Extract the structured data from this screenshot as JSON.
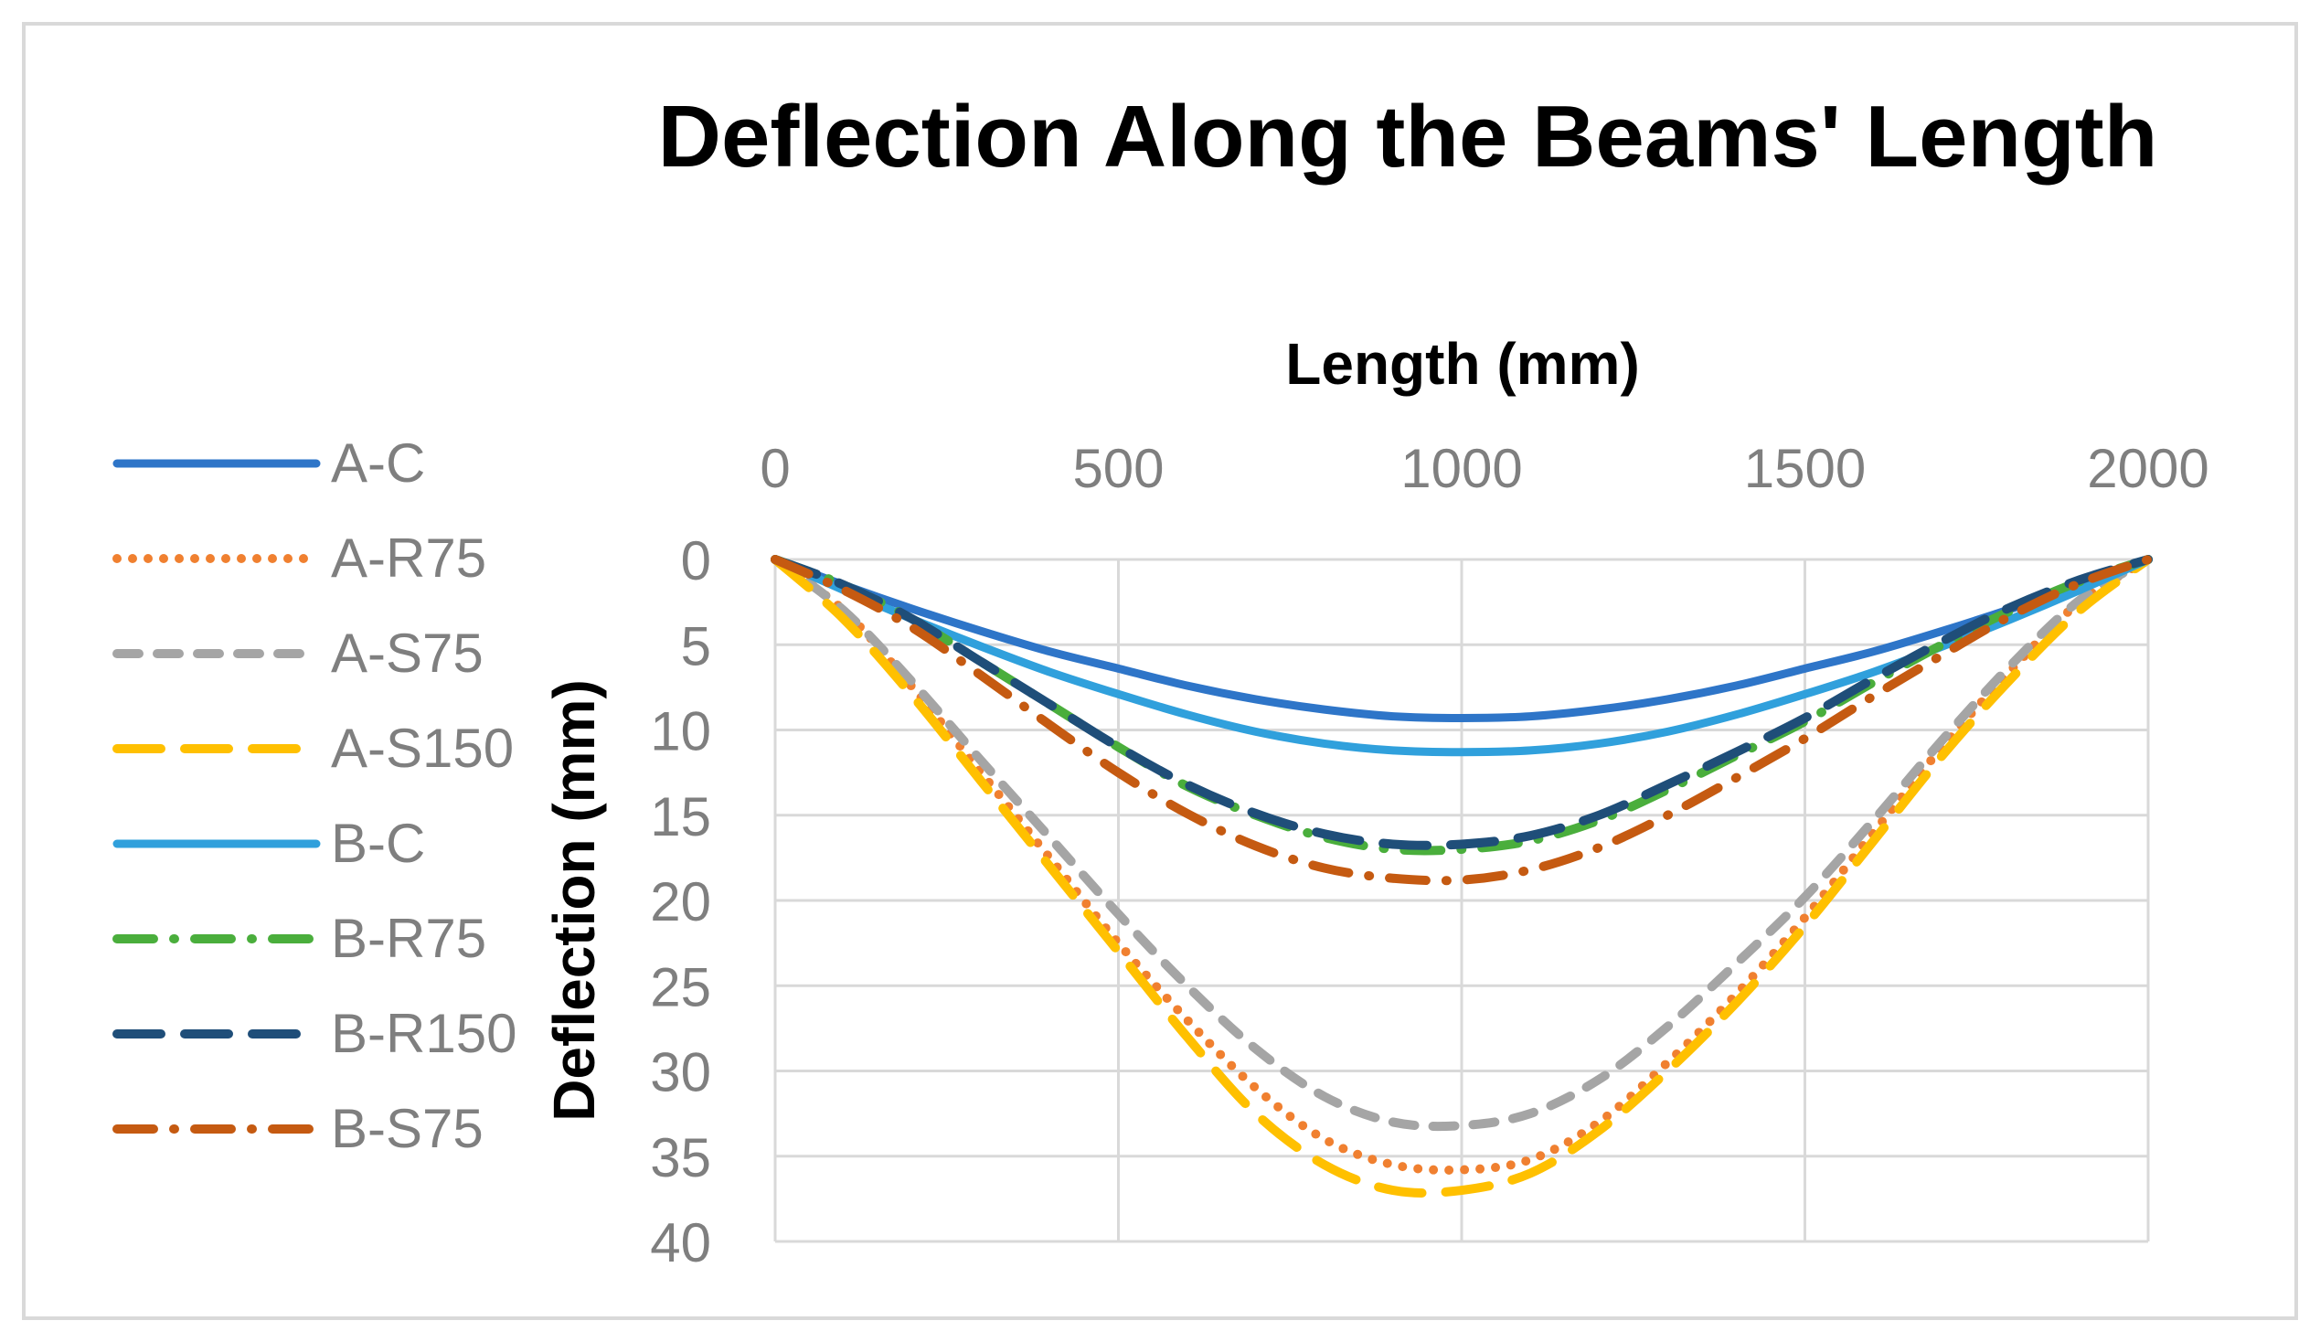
{
  "chart_data": {
    "type": "line",
    "title": "Deflection Along the Beams' Length",
    "xlabel": "Length (mm)",
    "ylabel": "Deflection (mm)",
    "xlim": [
      0,
      2000
    ],
    "ylim": [
      0,
      40
    ],
    "y_inverted": true,
    "x_axis_position": "top",
    "x_ticks": [
      "0",
      "500",
      "1000",
      "1500",
      "2000"
    ],
    "y_ticks": [
      "0",
      "5",
      "10",
      "15",
      "20",
      "25",
      "30",
      "35",
      "40"
    ],
    "x_tick_values": [
      0,
      500,
      1000,
      1500,
      2000
    ],
    "y_tick_values": [
      0,
      5,
      10,
      15,
      20,
      25,
      30,
      35,
      40
    ],
    "grid": true,
    "legend_position": "left",
    "series": [
      {
        "name": "A-C",
        "color": "#2e75c8",
        "dash": "solid",
        "x": [
          0,
          100,
          200,
          300,
          400,
          500,
          600,
          700,
          800,
          900,
          1000,
          1100,
          1200,
          1300,
          1400,
          1500,
          1600,
          1700,
          1800,
          1900,
          2000
        ],
        "values": [
          0,
          1.5,
          2.9,
          4.2,
          5.4,
          6.4,
          7.4,
          8.2,
          8.8,
          9.2,
          9.3,
          9.2,
          8.8,
          8.2,
          7.4,
          6.4,
          5.4,
          4.2,
          2.9,
          1.5,
          0
        ]
      },
      {
        "name": "A-R75",
        "color": "#f08030",
        "dash": "dot",
        "x": [
          0,
          100,
          200,
          300,
          400,
          500,
          600,
          700,
          800,
          900,
          1000,
          1100,
          1200,
          1300,
          1400,
          1500,
          1600,
          1700,
          1800,
          1900,
          2000
        ],
        "values": [
          0,
          3.0,
          7.5,
          12.5,
          17.5,
          22.5,
          27.0,
          31.0,
          34.0,
          35.5,
          35.8,
          35.2,
          33.0,
          29.5,
          25.5,
          21.0,
          16.0,
          11.0,
          6.5,
          2.5,
          0
        ]
      },
      {
        "name": "A-S75",
        "color": "#a5a5a5",
        "dash": "dash",
        "x": [
          0,
          100,
          200,
          300,
          400,
          500,
          600,
          700,
          800,
          900,
          1000,
          1100,
          1200,
          1300,
          1400,
          1500,
          1600,
          1700,
          1800,
          1900,
          2000
        ],
        "values": [
          0,
          3.0,
          7.2,
          11.8,
          16.3,
          20.8,
          25.0,
          28.7,
          31.5,
          33.0,
          33.2,
          32.5,
          30.5,
          27.4,
          23.7,
          19.8,
          15.3,
          10.6,
          6.2,
          2.4,
          0
        ]
      },
      {
        "name": "A-S150",
        "color": "#ffc000",
        "dash": "longdash",
        "x": [
          0,
          100,
          200,
          300,
          400,
          500,
          600,
          700,
          800,
          900,
          1000,
          1100,
          1200,
          1300,
          1400,
          1500,
          1600,
          1700,
          1800,
          1900,
          2000
        ],
        "values": [
          0,
          3.5,
          8.0,
          13.0,
          18.0,
          23.0,
          28.0,
          32.5,
          35.5,
          37.0,
          37.0,
          36.0,
          33.5,
          30.0,
          26.0,
          21.5,
          16.5,
          11.5,
          7.0,
          3.0,
          0
        ]
      },
      {
        "name": "B-C",
        "color": "#30a0dc",
        "dash": "solid",
        "x": [
          0,
          100,
          200,
          300,
          400,
          500,
          600,
          700,
          800,
          900,
          1000,
          1100,
          1200,
          1300,
          1400,
          1500,
          1600,
          1700,
          1800,
          1900,
          2000
        ],
        "values": [
          0,
          1.8,
          3.5,
          5.1,
          6.6,
          7.9,
          9.1,
          10.1,
          10.8,
          11.2,
          11.3,
          11.2,
          10.8,
          10.1,
          9.1,
          7.9,
          6.6,
          5.1,
          3.5,
          1.8,
          0
        ]
      },
      {
        "name": "B-R75",
        "color": "#4aae3c",
        "dash": "dashdot",
        "x": [
          0,
          100,
          200,
          300,
          400,
          500,
          600,
          700,
          800,
          900,
          1000,
          1100,
          1200,
          1300,
          1400,
          1500,
          1600,
          1700,
          1800,
          1900,
          2000
        ],
        "values": [
          0,
          1.5,
          3.5,
          6.0,
          8.5,
          11.0,
          13.3,
          15.0,
          16.3,
          17.0,
          17.0,
          16.5,
          15.3,
          13.5,
          11.5,
          9.5,
          7.2,
          5.0,
          3.0,
          1.3,
          0
        ]
      },
      {
        "name": "B-R150",
        "color": "#1f4e79",
        "dash": "longdash",
        "x": [
          0,
          100,
          200,
          300,
          400,
          500,
          600,
          700,
          800,
          900,
          1000,
          1100,
          1200,
          1300,
          1400,
          1500,
          1600,
          1700,
          1800,
          1900,
          2000
        ],
        "values": [
          0,
          1.5,
          3.5,
          6.0,
          8.5,
          11.0,
          13.2,
          14.9,
          16.1,
          16.7,
          16.7,
          16.2,
          15.0,
          13.2,
          11.3,
          9.3,
          7.0,
          4.8,
          2.8,
          1.2,
          0
        ]
      },
      {
        "name": "B-S75",
        "color": "#c55a11",
        "dash": "dashdot",
        "x": [
          0,
          100,
          200,
          300,
          400,
          500,
          600,
          700,
          800,
          900,
          1000,
          1100,
          1200,
          1300,
          1400,
          1500,
          1600,
          1700,
          1800,
          1900,
          2000
        ],
        "values": [
          0,
          1.8,
          4.0,
          6.8,
          9.7,
          12.5,
          14.9,
          16.8,
          18.1,
          18.7,
          18.8,
          18.2,
          16.9,
          15.0,
          12.8,
          10.5,
          8.0,
          5.6,
          3.3,
          1.4,
          0
        ]
      }
    ]
  }
}
